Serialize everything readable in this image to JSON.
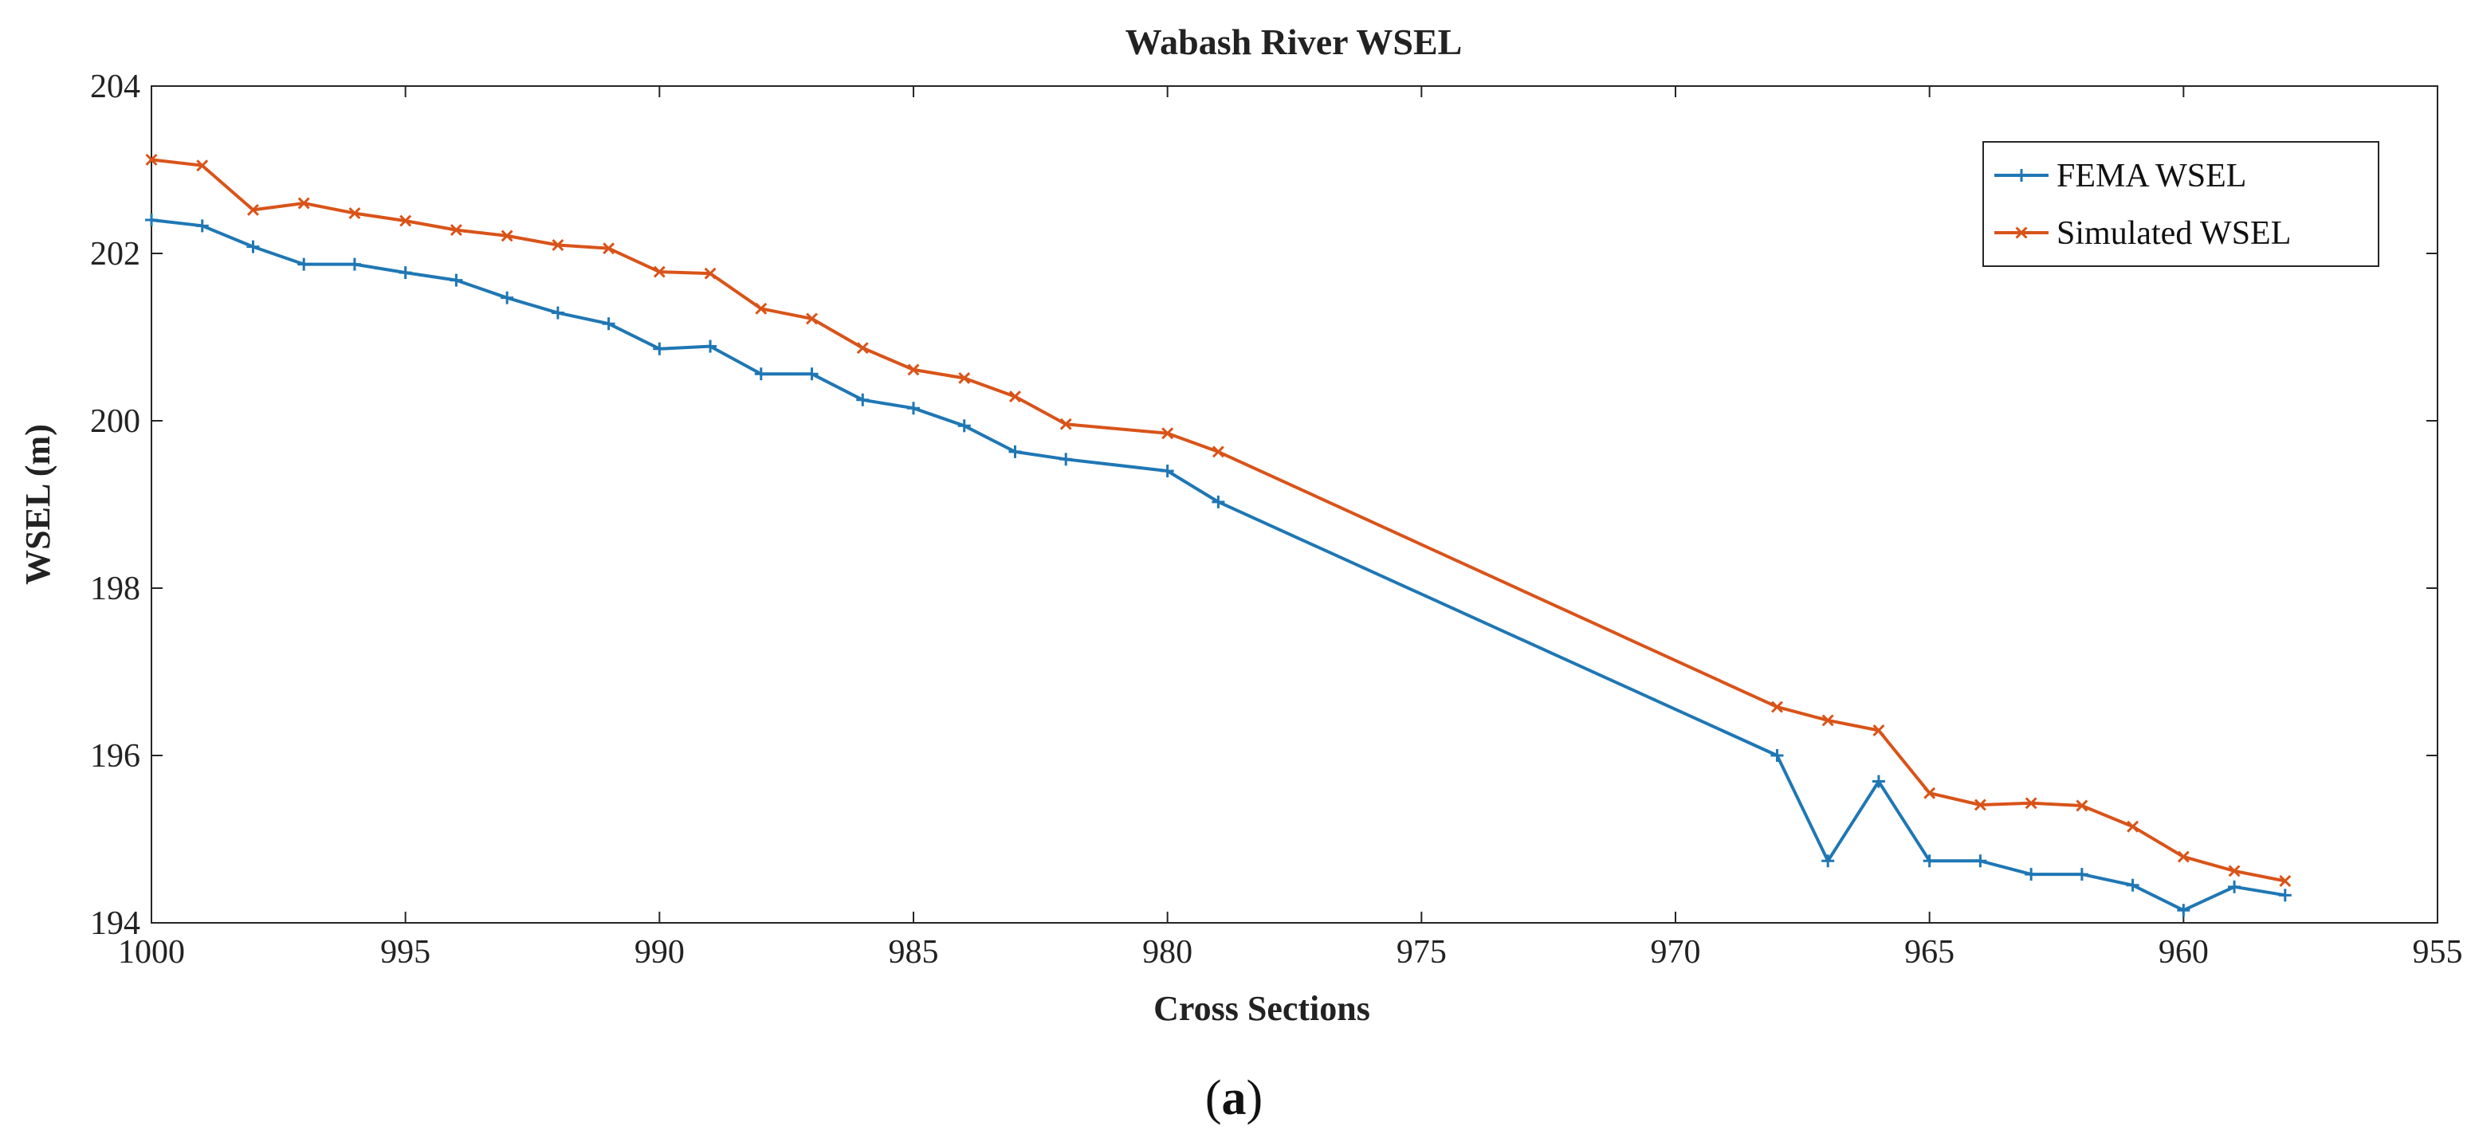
{
  "chart_data": {
    "type": "line",
    "title": "Wabash River WSEL",
    "xlabel": "Cross Sections",
    "ylabel": "WSEL (m)",
    "xlim": [
      1000,
      955
    ],
    "ylim": [
      194,
      204
    ],
    "xticks": [
      1000,
      995,
      990,
      985,
      980,
      975,
      970,
      965,
      960,
      955
    ],
    "yticks": [
      194,
      196,
      198,
      200,
      202,
      204
    ],
    "grid": false,
    "legend_position": "top-right",
    "series": [
      {
        "name": "FEMA WSEL",
        "color": "#1f77b4",
        "marker": "plus",
        "x": [
          1000,
          999,
          998,
          997,
          996,
          995,
          994,
          993,
          992,
          991,
          990,
          989,
          988,
          987,
          986,
          985,
          984,
          983,
          982,
          980,
          979,
          968,
          967,
          966,
          965,
          964,
          963,
          962,
          961,
          960,
          959,
          958
        ],
        "values": [
          202.4,
          202.33,
          202.08,
          201.87,
          201.87,
          201.77,
          201.68,
          201.47,
          201.29,
          201.16,
          200.86,
          200.89,
          200.56,
          200.56,
          200.25,
          200.15,
          199.94,
          199.63,
          199.54,
          199.4,
          199.03,
          196.0,
          194.74,
          195.69,
          194.74,
          194.74,
          194.58,
          194.58,
          194.45,
          194.15,
          194.43,
          194.33
        ]
      },
      {
        "name": "Simulated WSEL",
        "color": "#d95319",
        "marker": "x",
        "x": [
          1000,
          999,
          998,
          997,
          996,
          995,
          994,
          993,
          992,
          991,
          990,
          989,
          988,
          987,
          986,
          985,
          984,
          983,
          982,
          980,
          979,
          968,
          967,
          966,
          965,
          964,
          963,
          962,
          961,
          960,
          959,
          958
        ],
        "values": [
          203.12,
          203.05,
          202.52,
          202.6,
          202.48,
          202.39,
          202.28,
          202.21,
          202.1,
          202.06,
          201.78,
          201.76,
          201.34,
          201.22,
          200.87,
          200.61,
          200.51,
          200.29,
          199.96,
          199.85,
          199.63,
          196.58,
          196.42,
          196.3,
          195.55,
          195.41,
          195.43,
          195.4,
          195.15,
          194.79,
          194.62,
          194.5
        ]
      }
    ]
  },
  "caption": {
    "open": "(",
    "letter": "a",
    "close": ")"
  }
}
